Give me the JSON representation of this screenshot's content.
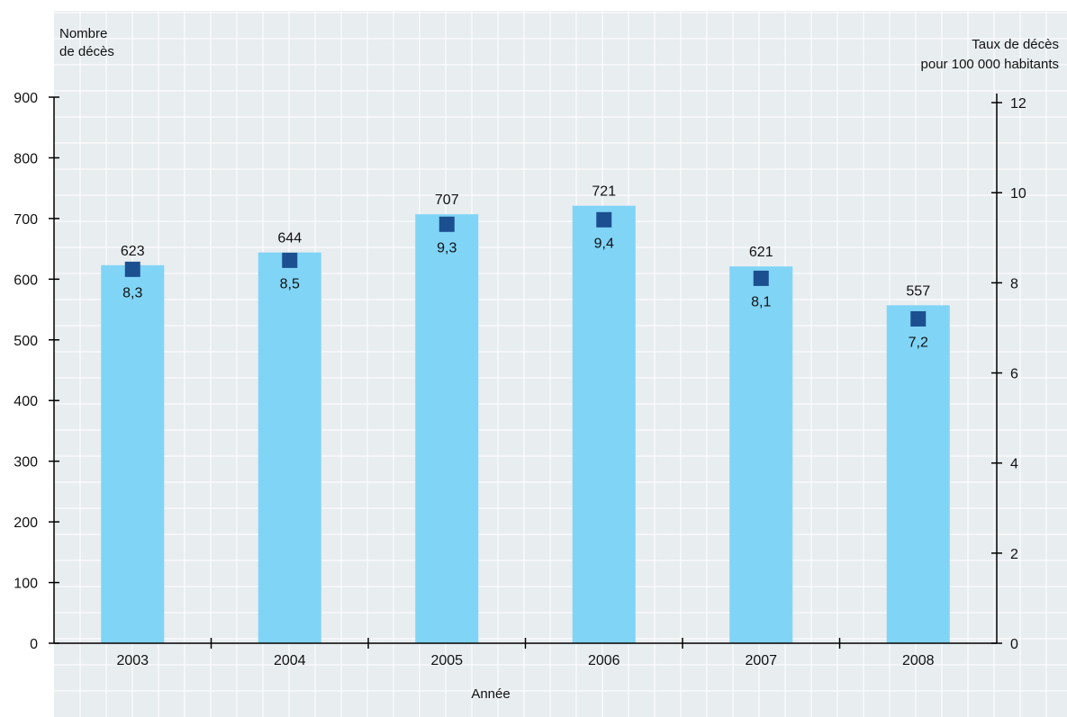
{
  "colors": {
    "background": "#e8edf0",
    "grid": "#ffffff",
    "bar": "#80d4f6",
    "marker": "#1b4f8f",
    "axis": "#000000"
  },
  "chart_data": {
    "type": "bar",
    "categories": [
      "2003",
      "2004",
      "2005",
      "2006",
      "2007",
      "2008"
    ],
    "series": [
      {
        "name": "",
        "kind": "bar",
        "axis": "left",
        "values": [
          623,
          644,
          707,
          721,
          621,
          557
        ],
        "labels": [
          "623",
          "644",
          "707",
          "721",
          "621",
          "557"
        ]
      },
      {
        "name": "",
        "kind": "marker",
        "axis": "right",
        "values": [
          8.3,
          8.5,
          9.3,
          9.4,
          8.1,
          7.2
        ],
        "labels": [
          "8,3",
          "8,5",
          "9,3",
          "9,4",
          "8,1",
          "7,2"
        ]
      }
    ],
    "xlabel": "Année",
    "ylabel_left": [
      "Nombre",
      "de décès"
    ],
    "ylabel_right": [
      "Taux de décès",
      "pour 100 000 habitants"
    ],
    "ylim_left": [
      0,
      900
    ],
    "yticks_left": [
      0,
      100,
      200,
      300,
      400,
      500,
      600,
      700,
      800,
      900
    ],
    "ylim_right": [
      0,
      13
    ],
    "yticks_right": [
      0,
      2,
      4,
      6,
      8,
      10,
      12
    ],
    "grid": true,
    "legend": "none"
  }
}
